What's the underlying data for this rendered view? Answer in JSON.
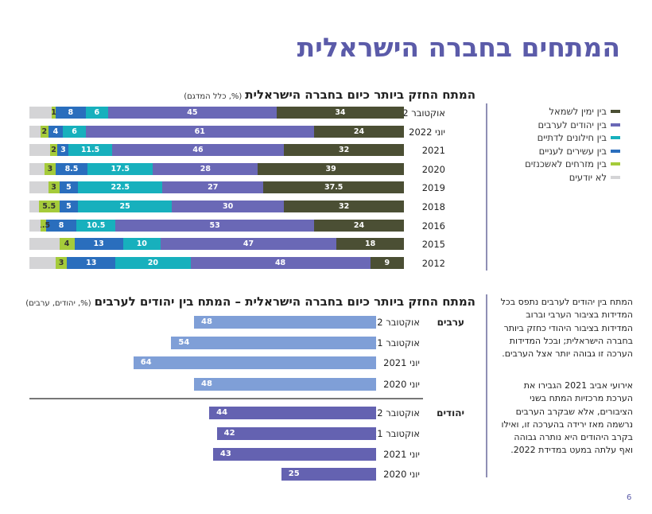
{
  "page_title": "המתחים בחברה הישראלית",
  "page_number": "6",
  "chart_data": [
    {
      "type": "bar",
      "orientation": "horizontal-stacked",
      "title": "המתח החזק ביותר כיום בחברה הישראלית",
      "subtitle": "(%, כלל המדגם)",
      "categories": [
        "אוקטובר 2022",
        "יוני 2022",
        "2021",
        "2020",
        "2019",
        "2018",
        "2016",
        "2015",
        "2012"
      ],
      "series": [
        {
          "name": "בין ימין לשמאל",
          "color": "#4b4f34",
          "values": [
            34,
            24,
            32,
            39,
            37.5,
            32,
            24,
            18,
            9
          ]
        },
        {
          "name": "בין יהודים לערבים",
          "color": "#6a68b6",
          "values": [
            45,
            61,
            46,
            28,
            27,
            30,
            53,
            47,
            48
          ]
        },
        {
          "name": "בין חילונים לדתיים",
          "color": "#17b0bd",
          "values": [
            6,
            6,
            11.5,
            17.5,
            22.5,
            25,
            10.5,
            10,
            20
          ]
        },
        {
          "name": "בין עשירים לעניים",
          "color": "#2a6ebd",
          "values": [
            8,
            4,
            3,
            8.5,
            5,
            5,
            8,
            13,
            13
          ]
        },
        {
          "name": "בין מזרחים לאשכנזים",
          "color": "#a5cb3a",
          "values": [
            1,
            2,
            2,
            3,
            3,
            5.5,
            1.5,
            4,
            3
          ]
        },
        {
          "name": "לא יודעים",
          "color": "#d4d4d6",
          "values": [
            6,
            3,
            5.5,
            4,
            5,
            2.5,
            3,
            8,
            7
          ]
        }
      ],
      "labeled_series_count": 5,
      "xlim": [
        0,
        100
      ],
      "legend": "right"
    },
    {
      "type": "bar",
      "orientation": "horizontal",
      "title": "המתח החזק ביותר כיום בחברה הישראלית – המתח בין יהודים לערבים",
      "subtitle": "(%, יהודים, ערבים)",
      "groups": [
        {
          "name": "ערבים",
          "color": "#7f9fd7",
          "categories": [
            "אוקטובר 2022",
            "אוקטובר 2021",
            "יוני 2021",
            "יוני 2020"
          ],
          "values": [
            48,
            54,
            64,
            48
          ]
        },
        {
          "name": "יהודים",
          "color": "#6462b1",
          "categories": [
            "אוקטובר 2022",
            "אוקטובר 2021",
            "יוני 2021",
            "יוני 2020"
          ],
          "values": [
            44,
            42,
            43,
            25
          ]
        }
      ]
    }
  ],
  "side_text": {
    "p1": "המתח בין יהודים לערבים נתפס בכל המדידות בציבור הערבי וברוב המדידות בציבור היהודי כחזק ביותר בחברה הישראלית; ובכל המדידות הערכה זו גבוהה יותר אצל הערבים.",
    "p2": "אירועי אביב 2021 הגבירו את הערכת מרכזיות המתח בשני הציבורים, אלא שבקרב הערבים נרשמה מאז ירידה בהערכה זו, ואילו בקרב היהודים היא נותרה גבוהה ואף עלתה במעט במדידת 2022."
  }
}
